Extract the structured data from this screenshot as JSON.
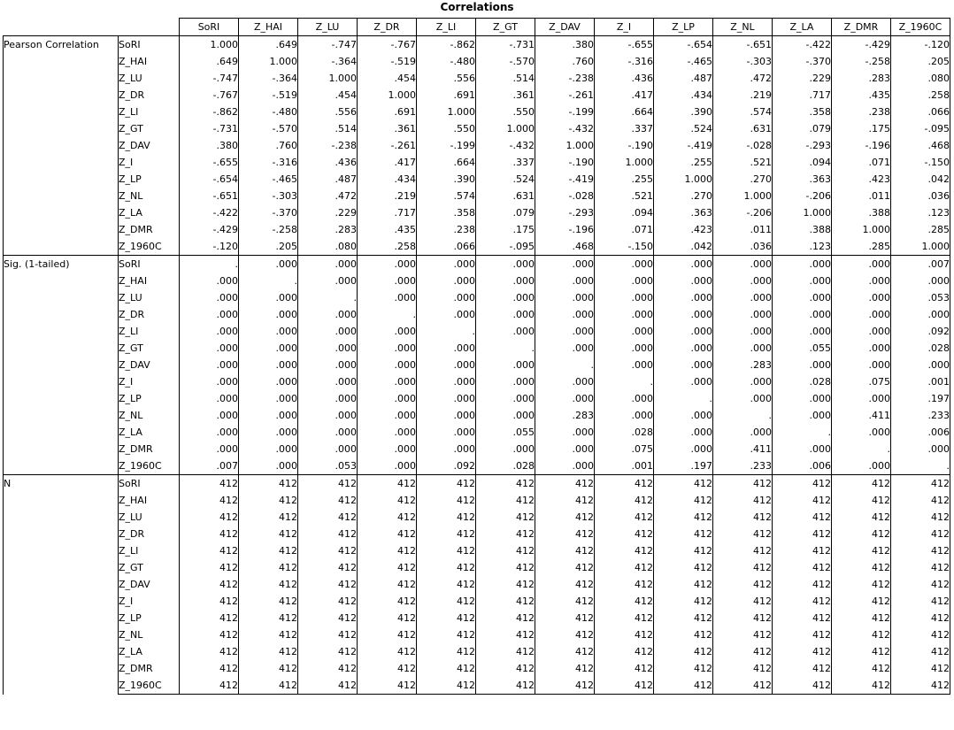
{
  "title": "Correlations",
  "columns": [
    "SoRI",
    "Z_HAI",
    "Z_LU",
    "Z_DR",
    "Z_LI",
    "Z_GT",
    "Z_DAV",
    "Z_I",
    "Z_LP",
    "Z_NL",
    "Z_LA",
    "Z_DMR",
    "Z_1960C"
  ],
  "groups": [
    {
      "label": "Pearson Correlation",
      "rows": [
        {
          "var": "SoRI",
          "values": [
            "1.000",
            ".649",
            "-.747",
            "-.767",
            "-.862",
            "-.731",
            ".380",
            "-.655",
            "-.654",
            "-.651",
            "-.422",
            "-.429",
            "-.120"
          ]
        },
        {
          "var": "Z_HAI",
          "values": [
            ".649",
            "1.000",
            "-.364",
            "-.519",
            "-.480",
            "-.570",
            ".760",
            "-.316",
            "-.465",
            "-.303",
            "-.370",
            "-.258",
            ".205"
          ]
        },
        {
          "var": "Z_LU",
          "values": [
            "-.747",
            "-.364",
            "1.000",
            ".454",
            ".556",
            ".514",
            "-.238",
            ".436",
            ".487",
            ".472",
            ".229",
            ".283",
            ".080"
          ]
        },
        {
          "var": "Z_DR",
          "values": [
            "-.767",
            "-.519",
            ".454",
            "1.000",
            ".691",
            ".361",
            "-.261",
            ".417",
            ".434",
            ".219",
            ".717",
            ".435",
            ".258"
          ]
        },
        {
          "var": "Z_LI",
          "values": [
            "-.862",
            "-.480",
            ".556",
            ".691",
            "1.000",
            ".550",
            "-.199",
            ".664",
            ".390",
            ".574",
            ".358",
            ".238",
            ".066"
          ]
        },
        {
          "var": "Z_GT",
          "values": [
            "-.731",
            "-.570",
            ".514",
            ".361",
            ".550",
            "1.000",
            "-.432",
            ".337",
            ".524",
            ".631",
            ".079",
            ".175",
            "-.095"
          ]
        },
        {
          "var": "Z_DAV",
          "values": [
            ".380",
            ".760",
            "-.238",
            "-.261",
            "-.199",
            "-.432",
            "1.000",
            "-.190",
            "-.419",
            "-.028",
            "-.293",
            "-.196",
            ".468"
          ]
        },
        {
          "var": "Z_I",
          "values": [
            "-.655",
            "-.316",
            ".436",
            ".417",
            ".664",
            ".337",
            "-.190",
            "1.000",
            ".255",
            ".521",
            ".094",
            ".071",
            "-.150"
          ]
        },
        {
          "var": "Z_LP",
          "values": [
            "-.654",
            "-.465",
            ".487",
            ".434",
            ".390",
            ".524",
            "-.419",
            ".255",
            "1.000",
            ".270",
            ".363",
            ".423",
            ".042"
          ]
        },
        {
          "var": "Z_NL",
          "values": [
            "-.651",
            "-.303",
            ".472",
            ".219",
            ".574",
            ".631",
            "-.028",
            ".521",
            ".270",
            "1.000",
            "-.206",
            ".011",
            ".036"
          ]
        },
        {
          "var": "Z_LA",
          "values": [
            "-.422",
            "-.370",
            ".229",
            ".717",
            ".358",
            ".079",
            "-.293",
            ".094",
            ".363",
            "-.206",
            "1.000",
            ".388",
            ".123"
          ]
        },
        {
          "var": "Z_DMR",
          "values": [
            "-.429",
            "-.258",
            ".283",
            ".435",
            ".238",
            ".175",
            "-.196",
            ".071",
            ".423",
            ".011",
            ".388",
            "1.000",
            ".285"
          ]
        },
        {
          "var": "Z_1960C",
          "values": [
            "-.120",
            ".205",
            ".080",
            ".258",
            ".066",
            "-.095",
            ".468",
            "-.150",
            ".042",
            ".036",
            ".123",
            ".285",
            "1.000"
          ]
        }
      ]
    },
    {
      "label": "Sig. (1-tailed)",
      "rows": [
        {
          "var": "SoRI",
          "values": [
            ".",
            ".000",
            ".000",
            ".000",
            ".000",
            ".000",
            ".000",
            ".000",
            ".000",
            ".000",
            ".000",
            ".000",
            ".007"
          ]
        },
        {
          "var": "Z_HAI",
          "values": [
            ".000",
            ".",
            ".000",
            ".000",
            ".000",
            ".000",
            ".000",
            ".000",
            ".000",
            ".000",
            ".000",
            ".000",
            ".000"
          ]
        },
        {
          "var": "Z_LU",
          "values": [
            ".000",
            ".000",
            ".",
            ".000",
            ".000",
            ".000",
            ".000",
            ".000",
            ".000",
            ".000",
            ".000",
            ".000",
            ".053"
          ]
        },
        {
          "var": "Z_DR",
          "values": [
            ".000",
            ".000",
            ".000",
            ".",
            ".000",
            ".000",
            ".000",
            ".000",
            ".000",
            ".000",
            ".000",
            ".000",
            ".000"
          ]
        },
        {
          "var": "Z_LI",
          "values": [
            ".000",
            ".000",
            ".000",
            ".000",
            ".",
            ".000",
            ".000",
            ".000",
            ".000",
            ".000",
            ".000",
            ".000",
            ".092"
          ]
        },
        {
          "var": "Z_GT",
          "values": [
            ".000",
            ".000",
            ".000",
            ".000",
            ".000",
            ".",
            ".000",
            ".000",
            ".000",
            ".000",
            ".055",
            ".000",
            ".028"
          ]
        },
        {
          "var": "Z_DAV",
          "values": [
            ".000",
            ".000",
            ".000",
            ".000",
            ".000",
            ".000",
            ".",
            ".000",
            ".000",
            ".283",
            ".000",
            ".000",
            ".000"
          ]
        },
        {
          "var": "Z_I",
          "values": [
            ".000",
            ".000",
            ".000",
            ".000",
            ".000",
            ".000",
            ".000",
            ".",
            ".000",
            ".000",
            ".028",
            ".075",
            ".001"
          ]
        },
        {
          "var": "Z_LP",
          "values": [
            ".000",
            ".000",
            ".000",
            ".000",
            ".000",
            ".000",
            ".000",
            ".000",
            ".",
            ".000",
            ".000",
            ".000",
            ".197"
          ]
        },
        {
          "var": "Z_NL",
          "values": [
            ".000",
            ".000",
            ".000",
            ".000",
            ".000",
            ".000",
            ".283",
            ".000",
            ".000",
            ".",
            ".000",
            ".411",
            ".233"
          ]
        },
        {
          "var": "Z_LA",
          "values": [
            ".000",
            ".000",
            ".000",
            ".000",
            ".000",
            ".055",
            ".000",
            ".028",
            ".000",
            ".000",
            ".",
            ".000",
            ".006"
          ]
        },
        {
          "var": "Z_DMR",
          "values": [
            ".000",
            ".000",
            ".000",
            ".000",
            ".000",
            ".000",
            ".000",
            ".075",
            ".000",
            ".411",
            ".000",
            ".",
            ".000"
          ]
        },
        {
          "var": "Z_1960C",
          "values": [
            ".007",
            ".000",
            ".053",
            ".000",
            ".092",
            ".028",
            ".000",
            ".001",
            ".197",
            ".233",
            ".006",
            ".000",
            "."
          ]
        }
      ]
    },
    {
      "label": "N",
      "rows": [
        {
          "var": "SoRI",
          "values": [
            "412",
            "412",
            "412",
            "412",
            "412",
            "412",
            "412",
            "412",
            "412",
            "412",
            "412",
            "412",
            "412"
          ]
        },
        {
          "var": "Z_HAI",
          "values": [
            "412",
            "412",
            "412",
            "412",
            "412",
            "412",
            "412",
            "412",
            "412",
            "412",
            "412",
            "412",
            "412"
          ]
        },
        {
          "var": "Z_LU",
          "values": [
            "412",
            "412",
            "412",
            "412",
            "412",
            "412",
            "412",
            "412",
            "412",
            "412",
            "412",
            "412",
            "412"
          ]
        },
        {
          "var": "Z_DR",
          "values": [
            "412",
            "412",
            "412",
            "412",
            "412",
            "412",
            "412",
            "412",
            "412",
            "412",
            "412",
            "412",
            "412"
          ]
        },
        {
          "var": "Z_LI",
          "values": [
            "412",
            "412",
            "412",
            "412",
            "412",
            "412",
            "412",
            "412",
            "412",
            "412",
            "412",
            "412",
            "412"
          ]
        },
        {
          "var": "Z_GT",
          "values": [
            "412",
            "412",
            "412",
            "412",
            "412",
            "412",
            "412",
            "412",
            "412",
            "412",
            "412",
            "412",
            "412"
          ]
        },
        {
          "var": "Z_DAV",
          "values": [
            "412",
            "412",
            "412",
            "412",
            "412",
            "412",
            "412",
            "412",
            "412",
            "412",
            "412",
            "412",
            "412"
          ]
        },
        {
          "var": "Z_I",
          "values": [
            "412",
            "412",
            "412",
            "412",
            "412",
            "412",
            "412",
            "412",
            "412",
            "412",
            "412",
            "412",
            "412"
          ]
        },
        {
          "var": "Z_LP",
          "values": [
            "412",
            "412",
            "412",
            "412",
            "412",
            "412",
            "412",
            "412",
            "412",
            "412",
            "412",
            "412",
            "412"
          ]
        },
        {
          "var": "Z_NL",
          "values": [
            "412",
            "412",
            "412",
            "412",
            "412",
            "412",
            "412",
            "412",
            "412",
            "412",
            "412",
            "412",
            "412"
          ]
        },
        {
          "var": "Z_LA",
          "values": [
            "412",
            "412",
            "412",
            "412",
            "412",
            "412",
            "412",
            "412",
            "412",
            "412",
            "412",
            "412",
            "412"
          ]
        },
        {
          "var": "Z_DMR",
          "values": [
            "412",
            "412",
            "412",
            "412",
            "412",
            "412",
            "412",
            "412",
            "412",
            "412",
            "412",
            "412",
            "412"
          ]
        },
        {
          "var": "Z_1960C",
          "values": [
            "412",
            "412",
            "412",
            "412",
            "412",
            "412",
            "412",
            "412",
            "412",
            "412",
            "412",
            "412",
            "412"
          ]
        }
      ]
    }
  ]
}
